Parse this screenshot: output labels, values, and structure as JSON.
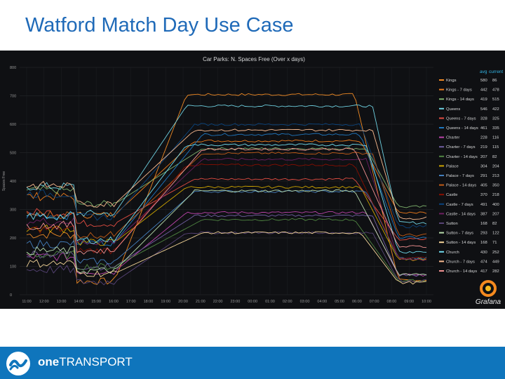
{
  "slide": {
    "title": "Watford Match Day Use Case"
  },
  "footer": {
    "brand_prefix": "one",
    "brand_suffix": "TRANSPORT"
  },
  "dashboard": {
    "brand": "Grafana"
  },
  "chart_data": {
    "type": "line",
    "title": "Car Parks: N. Spaces Free (Over x days)",
    "xlabel": "",
    "ylabel": "Spaces Free",
    "ylim": [
      0,
      800
    ],
    "yticks": [
      "800",
      "700",
      "600",
      "500",
      "400",
      "300",
      "200",
      "100",
      "0"
    ],
    "x_ticks": [
      "11:00",
      "12:00",
      "13:00",
      "14:00",
      "15:00",
      "16:00",
      "17:00",
      "18:00",
      "19:00",
      "20:00",
      "21:00",
      "22:00",
      "23:00",
      "00:00",
      "01:00",
      "02:00",
      "03:00",
      "04:00",
      "05:00",
      "06:00",
      "07:00",
      "08:00",
      "09:00",
      "10:00"
    ],
    "legend_headers": [
      "avg",
      "current"
    ],
    "series": [
      {
        "name": "Kings",
        "color": "#ef8a25",
        "avg": "580",
        "current": "86"
      },
      {
        "name": "Kings - 7 days",
        "color": "#eb7b1c",
        "avg": "442",
        "current": "478"
      },
      {
        "name": "Kings - 14 days",
        "color": "#7eb26d",
        "avg": "419",
        "current": "515"
      },
      {
        "name": "Queens",
        "color": "#6ed0e0",
        "avg": "546",
        "current": "422"
      },
      {
        "name": "Queens - 7 days",
        "color": "#e24d42",
        "avg": "328",
        "current": "325"
      },
      {
        "name": "Queens - 14 days",
        "color": "#1f78c1",
        "avg": "461",
        "current": "335"
      },
      {
        "name": "Charter",
        "color": "#ba43a9",
        "avg": "228",
        "current": "116"
      },
      {
        "name": "Charter - 7 days",
        "color": "#705da0",
        "avg": "219",
        "current": "115"
      },
      {
        "name": "Charter - 14 days",
        "color": "#508642",
        "avg": "207",
        "current": "82"
      },
      {
        "name": "Palace",
        "color": "#cca300",
        "avg": "304",
        "current": "204"
      },
      {
        "name": "Palace - 7 days",
        "color": "#447ebc",
        "avg": "291",
        "current": "213"
      },
      {
        "name": "Palace - 14 days",
        "color": "#c15c17",
        "avg": "405",
        "current": "350"
      },
      {
        "name": "Castle",
        "color": "#890f02",
        "avg": "370",
        "current": "218"
      },
      {
        "name": "Castle - 7 days",
        "color": "#0a437c",
        "avg": "491",
        "current": "400"
      },
      {
        "name": "Castle - 14 days",
        "color": "#6d1f62",
        "avg": "387",
        "current": "207"
      },
      {
        "name": "Sutton",
        "color": "#584477",
        "avg": "168",
        "current": "82"
      },
      {
        "name": "Sutton - 7 days",
        "color": "#b7dbab",
        "avg": "293",
        "current": "122"
      },
      {
        "name": "Sutton - 14 days",
        "color": "#f4d598",
        "avg": "168",
        "current": "71"
      },
      {
        "name": "Church",
        "color": "#70dbed",
        "avg": "430",
        "current": "252"
      },
      {
        "name": "Church - 7 days",
        "color": "#f9ba8f",
        "avg": "474",
        "current": "449"
      },
      {
        "name": "Church - 14 days",
        "color": "#f29191",
        "avg": "417",
        "current": "282"
      }
    ]
  }
}
